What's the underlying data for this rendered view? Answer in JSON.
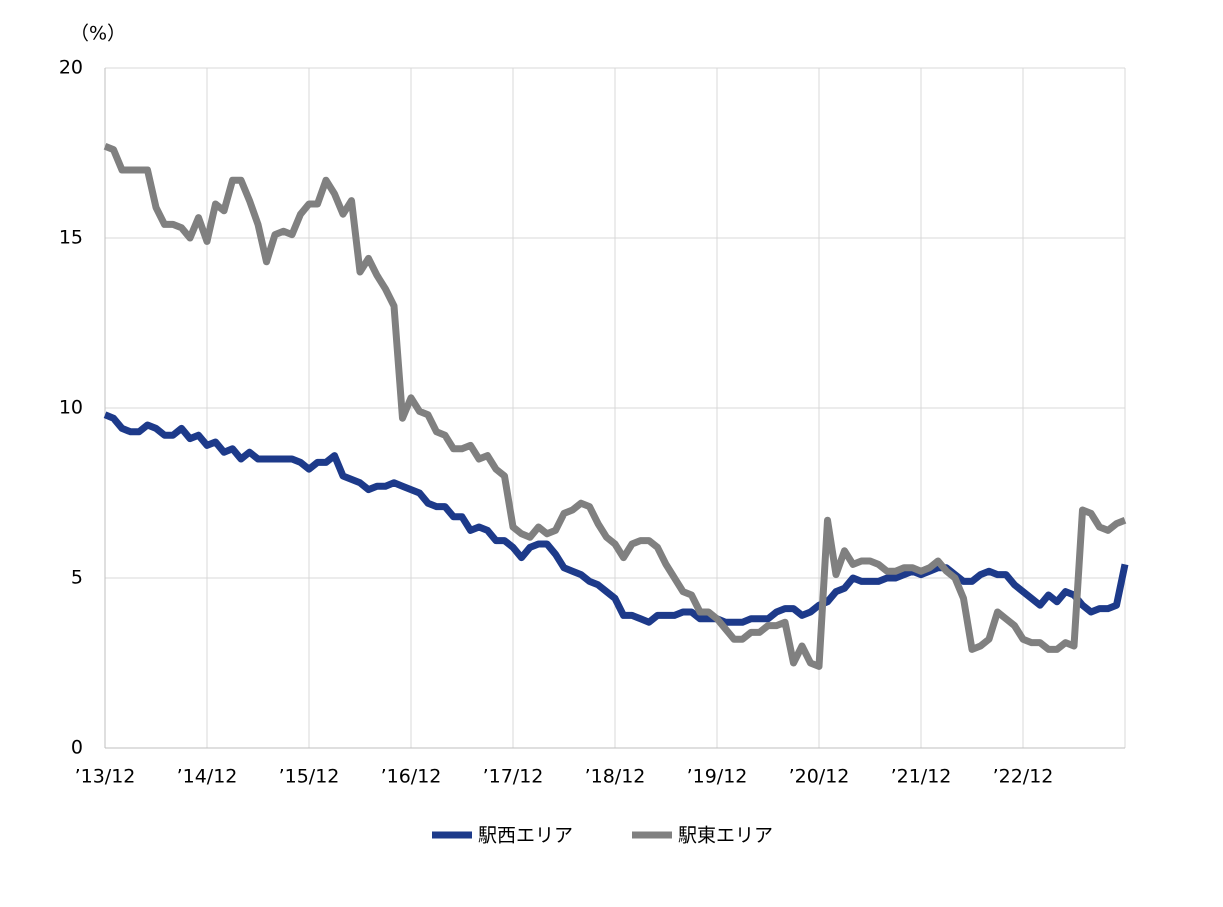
{
  "chart_data": {
    "type": "line",
    "y_label": "（%）",
    "categories": [
      "’13/12",
      null,
      null,
      null,
      null,
      null,
      null,
      null,
      null,
      null,
      null,
      null,
      "’14/12",
      null,
      null,
      null,
      null,
      null,
      null,
      null,
      null,
      null,
      null,
      null,
      "’15/12",
      null,
      null,
      null,
      null,
      null,
      null,
      null,
      null,
      null,
      null,
      null,
      "’16/12",
      null,
      null,
      null,
      null,
      null,
      null,
      null,
      null,
      null,
      null,
      null,
      "’17/12",
      null,
      null,
      null,
      null,
      null,
      null,
      null,
      null,
      null,
      null,
      null,
      "’18/12",
      null,
      null,
      null,
      null,
      null,
      null,
      null,
      null,
      null,
      null,
      null,
      "’19/12",
      null,
      null,
      null,
      null,
      null,
      null,
      null,
      null,
      null,
      null,
      null,
      "’20/12",
      null,
      null,
      null,
      null,
      null,
      null,
      null,
      null,
      null,
      null,
      null,
      "’21/12",
      null,
      null,
      null,
      null,
      null,
      null,
      null,
      null,
      null,
      null,
      null,
      "’22/12",
      null,
      null,
      null,
      null,
      null,
      null,
      null,
      null,
      null,
      null,
      null,
      null
    ],
    "series": [
      {
        "name": "駅西エリア",
        "color": "#1d3a8a",
        "values": [
          9.8,
          9.7,
          9.4,
          9.3,
          9.3,
          9.5,
          9.4,
          9.2,
          9.2,
          9.4,
          9.1,
          9.2,
          8.9,
          9.0,
          8.7,
          8.8,
          8.5,
          8.7,
          8.5,
          8.5,
          8.5,
          8.5,
          8.5,
          8.4,
          8.2,
          8.4,
          8.4,
          8.6,
          8.0,
          7.9,
          7.8,
          7.6,
          7.7,
          7.7,
          7.8,
          7.7,
          7.6,
          7.5,
          7.2,
          7.1,
          7.1,
          6.8,
          6.8,
          6.4,
          6.5,
          6.4,
          6.1,
          6.1,
          5.9,
          5.6,
          5.9,
          6.0,
          6.0,
          5.7,
          5.3,
          5.2,
          5.1,
          4.9,
          4.8,
          4.6,
          4.4,
          3.9,
          3.9,
          3.8,
          3.7,
          3.9,
          3.9,
          3.9,
          4.0,
          4.0,
          3.8,
          3.8,
          3.8,
          3.7,
          3.7,
          3.7,
          3.8,
          3.8,
          3.8,
          4.0,
          4.1,
          4.1,
          3.9,
          4.0,
          4.2,
          4.3,
          4.6,
          4.7,
          5.0,
          4.9,
          4.9,
          4.9,
          5.0,
          5.0,
          5.1,
          5.2,
          5.1,
          5.2,
          5.3,
          5.3,
          5.1,
          4.9,
          4.9,
          5.1,
          5.2,
          5.1,
          5.1,
          4.8,
          4.6,
          4.4,
          4.2,
          4.5,
          4.3,
          4.6,
          4.5,
          4.2,
          4.0,
          4.1,
          4.1,
          4.2,
          5.4
        ]
      },
      {
        "name": "駅東エリア",
        "color": "#808080",
        "values": [
          17.7,
          17.6,
          17.0,
          17.0,
          17.0,
          17.0,
          15.9,
          15.4,
          15.4,
          15.3,
          15.0,
          15.6,
          14.9,
          16.0,
          15.8,
          16.7,
          16.7,
          16.1,
          15.4,
          14.3,
          15.1,
          15.2,
          15.1,
          15.7,
          16.0,
          16.0,
          16.7,
          16.3,
          15.7,
          16.1,
          14.0,
          14.4,
          13.9,
          13.5,
          13.0,
          9.7,
          10.3,
          9.9,
          9.8,
          9.3,
          9.2,
          8.8,
          8.8,
          8.9,
          8.5,
          8.6,
          8.2,
          8.0,
          6.5,
          6.3,
          6.2,
          6.5,
          6.3,
          6.4,
          6.9,
          7.0,
          7.2,
          7.1,
          6.6,
          6.2,
          6.0,
          5.6,
          6.0,
          6.1,
          6.1,
          5.9,
          5.4,
          5.0,
          4.6,
          4.5,
          4.0,
          4.0,
          3.8,
          3.5,
          3.2,
          3.2,
          3.4,
          3.4,
          3.6,
          3.6,
          3.7,
          2.5,
          3.0,
          2.5,
          2.4,
          6.7,
          5.1,
          5.8,
          5.4,
          5.5,
          5.5,
          5.4,
          5.2,
          5.2,
          5.3,
          5.3,
          5.2,
          5.3,
          5.5,
          5.2,
          5.0,
          4.4,
          2.9,
          3.0,
          3.2,
          4.0,
          3.8,
          3.6,
          3.2,
          3.1,
          3.1,
          2.9,
          2.9,
          3.1,
          3.0,
          7.0,
          6.9,
          6.5,
          6.4,
          6.6,
          6.7
        ]
      }
    ],
    "ylim": [
      0,
      20
    ],
    "yticks": [
      0,
      5,
      10,
      15,
      20
    ],
    "grid": true
  }
}
